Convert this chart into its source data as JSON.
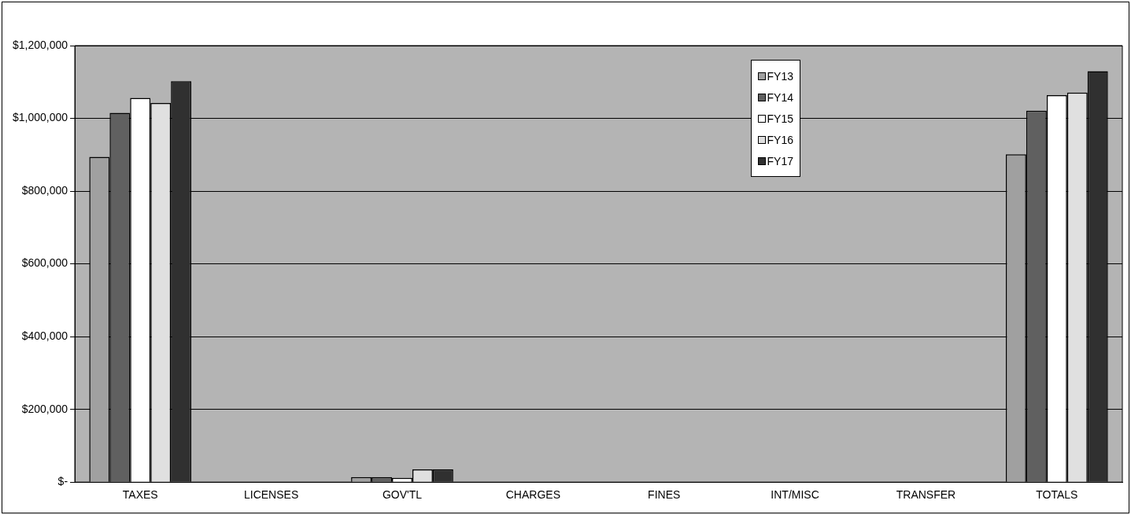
{
  "chart_data": {
    "type": "bar",
    "categories": [
      "TAXES",
      "LICENSES",
      "GOV'TL",
      "CHARGES",
      "FINES",
      "INT/MISC",
      "TRANSFER",
      "TOTALS"
    ],
    "series": [
      {
        "name": "FY13",
        "color": "#a0a0a0",
        "values": [
          894000,
          0,
          14000,
          0,
          0,
          0,
          0,
          901000
        ]
      },
      {
        "name": "FY14",
        "color": "#606060",
        "values": [
          1015000,
          0,
          14000,
          0,
          0,
          0,
          0,
          1021000
        ]
      },
      {
        "name": "FY15",
        "color": "#ffffff",
        "values": [
          1056000,
          0,
          12000,
          0,
          0,
          0,
          0,
          1064000
        ]
      },
      {
        "name": "FY16",
        "color": "#e0e0e0",
        "values": [
          1042000,
          0,
          35000,
          0,
          0,
          0,
          0,
          1071000
        ]
      },
      {
        "name": "FY17",
        "color": "#303030",
        "values": [
          1102000,
          0,
          35000,
          0,
          0,
          0,
          0,
          1130000
        ]
      }
    ],
    "ylim": [
      0,
      1200000
    ],
    "yticks": [
      {
        "value": 0,
        "label": "$-"
      },
      {
        "value": 200000,
        "label": "$200,000"
      },
      {
        "value": 400000,
        "label": "$400,000"
      },
      {
        "value": 600000,
        "label": "$600,000"
      },
      {
        "value": 800000,
        "label": "$800,000"
      },
      {
        "value": 1000000,
        "label": "$1,000,000"
      },
      {
        "value": 1200000,
        "label": "$1,200,000"
      }
    ],
    "grid": "y",
    "legend": "top right"
  }
}
